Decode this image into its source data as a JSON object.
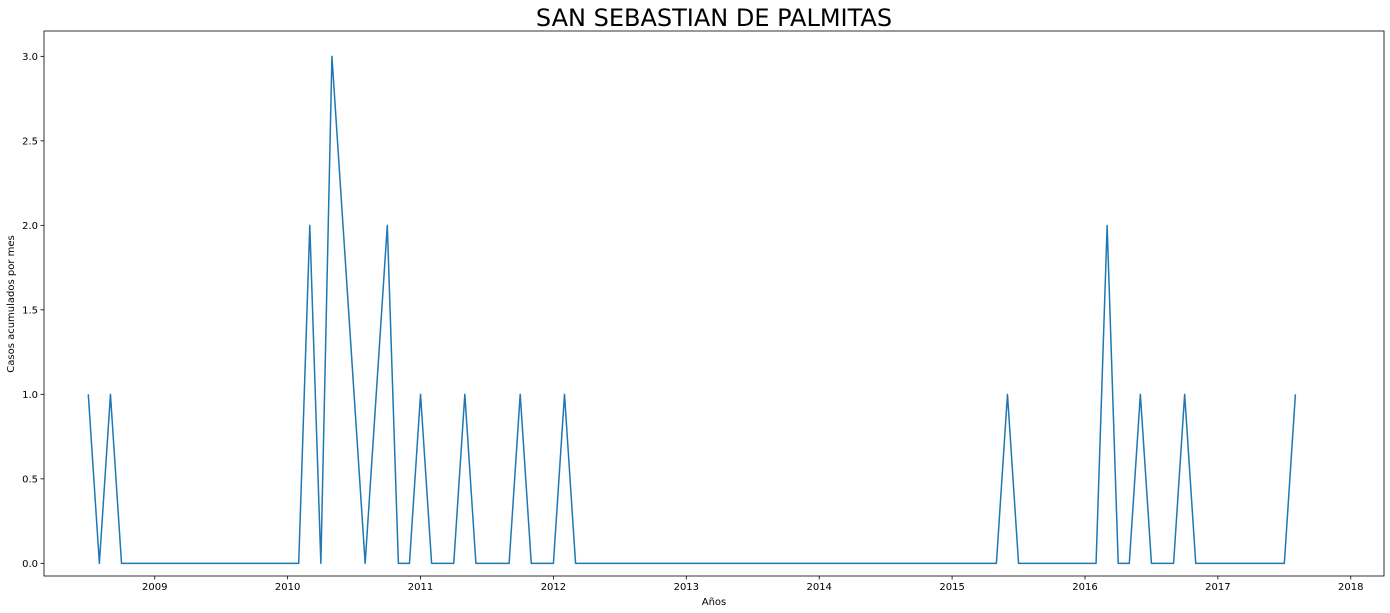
{
  "chart_data": {
    "type": "line",
    "title": "SAN SEBASTIAN DE PALMITAS",
    "xlabel": "Años",
    "ylabel": "Casos acumulados por mes",
    "x_tick_labels": [
      "2009",
      "2010",
      "2011",
      "2012",
      "2013",
      "2014",
      "2015",
      "2016",
      "2017",
      "2018"
    ],
    "y_tick_labels": [
      "0.0",
      "0.5",
      "1.0",
      "1.5",
      "2.0",
      "2.5",
      "3.0"
    ],
    "ylim": [
      -0.075,
      3.15
    ],
    "xlim": [
      "2008-03-01",
      "2018-04-01"
    ],
    "grid": false,
    "color": "#1f77b4",
    "x": [
      "2008-07",
      "2008-08",
      "2008-09",
      "2008-10",
      "2010-02",
      "2010-03",
      "2010-04",
      "2010-05",
      "2010-08",
      "2010-09",
      "2010-10",
      "2010-11",
      "2010-12",
      "2011-01",
      "2011-02",
      "2011-04",
      "2011-05",
      "2011-06",
      "2011-09",
      "2011-10",
      "2011-11",
      "2012-01",
      "2012-02",
      "2012-03",
      "2012-04",
      "2015-05",
      "2015-06",
      "2015-07",
      "2016-02",
      "2016-03",
      "2016-04",
      "2016-05",
      "2016-06",
      "2016-07",
      "2016-09",
      "2016-10",
      "2016-11",
      "2017-07",
      "2017-08"
    ],
    "y": [
      1,
      0,
      1,
      0,
      0,
      2,
      0,
      3,
      0,
      1,
      2,
      0,
      0,
      1,
      0,
      0,
      1,
      0,
      0,
      1,
      0,
      0,
      1,
      0,
      0,
      0,
      1,
      0,
      0,
      2,
      0,
      0,
      1,
      0,
      0,
      1,
      0,
      0,
      1
    ]
  }
}
